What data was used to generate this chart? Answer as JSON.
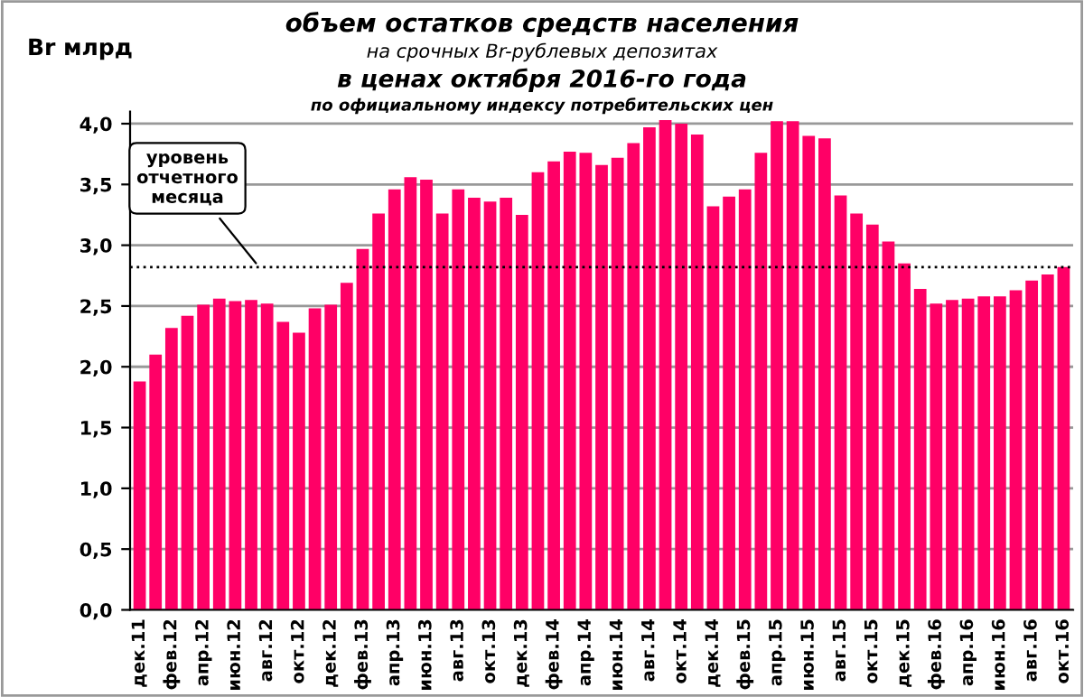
{
  "chart_data": {
    "type": "bar",
    "title": "объем остатков средств населения",
    "subtitle": "на срочных Br-рублевых депозитах\nв ценах октября 2016-го года\nпо официальному индексу потребительских цен",
    "ylabel": "Br млрд",
    "categories": [
      "дек.11",
      null,
      "фев.12",
      null,
      "апр.12",
      null,
      "июн.12",
      null,
      "авг.12",
      null,
      "окт.12",
      null,
      "дек.12",
      null,
      "фев.13",
      null,
      "апр.13",
      null,
      "июн.13",
      null,
      "авг.13",
      null,
      "окт.13",
      null,
      "дек.13",
      null,
      "фев.14",
      null,
      "апр.14",
      null,
      "июн.14",
      null,
      "авг.14",
      null,
      "окт.14",
      null,
      "дек.14",
      null,
      "фев.15",
      null,
      "апр.15",
      null,
      "июн.15",
      null,
      "авг.15",
      null,
      "окт.15",
      null,
      "дек.15",
      null,
      "фев.16",
      null,
      "апр.16",
      null,
      "июн.16",
      null,
      "авг.16",
      null,
      "окт.16"
    ],
    "values": [
      1.88,
      2.1,
      2.32,
      2.42,
      2.51,
      2.56,
      2.54,
      2.55,
      2.52,
      2.37,
      2.28,
      2.48,
      2.51,
      2.69,
      2.97,
      3.26,
      3.46,
      3.56,
      3.54,
      3.26,
      3.46,
      3.39,
      3.36,
      3.39,
      3.25,
      3.6,
      3.69,
      3.77,
      3.76,
      3.66,
      3.72,
      3.84,
      3.97,
      4.03,
      4.0,
      3.91,
      3.32,
      3.4,
      3.46,
      3.76,
      4.02,
      4.02,
      3.9,
      3.88,
      3.41,
      3.26,
      3.17,
      3.03,
      2.85,
      2.64,
      2.52,
      2.55,
      2.56,
      2.58,
      2.58,
      2.63,
      2.71,
      2.76,
      2.82
    ],
    "color": "#ff0066",
    "ylim": [
      0,
      4.1
    ],
    "yticks": [
      {
        "value": 0,
        "label": "0,0"
      },
      {
        "value": 0.5,
        "label": "0,5"
      },
      {
        "value": 1.0,
        "label": "1,0"
      },
      {
        "value": 1.5,
        "label": "1,5"
      },
      {
        "value": 2.0,
        "label": "2,0"
      },
      {
        "value": 2.5,
        "label": "2,5"
      },
      {
        "value": 3.0,
        "label": "3,0"
      },
      {
        "value": 3.5,
        "label": "3,5"
      },
      {
        "value": 4.0,
        "label": "4,0"
      }
    ],
    "ref_lines": [
      {
        "axis": "y",
        "value": 2.82,
        "label": "уровень\nотчетного\nмесяца",
        "color": "#000000",
        "line_style": "dotted"
      }
    ],
    "grid": "y"
  }
}
